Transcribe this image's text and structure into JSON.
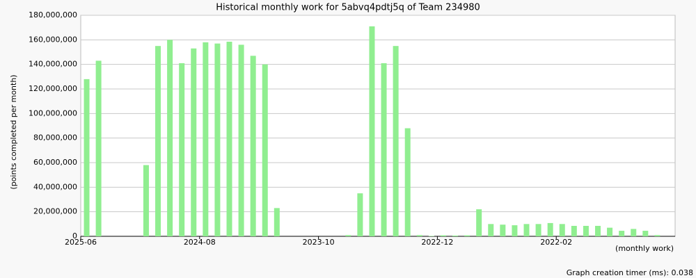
{
  "chart_data": {
    "type": "bar",
    "title": "Historical monthly work for 5abvq4pdtj5q of Team 234980",
    "y_label": "(points completed per month)",
    "x_label": "(monthly work)",
    "footer": "Graph creation timer (ms): 0.038",
    "color": "#90ee90",
    "grid": true,
    "categories": [
      "2025-06",
      null,
      null,
      null,
      null,
      null,
      null,
      null,
      null,
      null,
      "2024-08",
      null,
      null,
      null,
      null,
      null,
      null,
      null,
      null,
      null,
      "2023-10",
      null,
      null,
      null,
      null,
      null,
      null,
      null,
      null,
      null,
      "2022-12",
      null,
      null,
      null,
      null,
      null,
      null,
      null,
      null,
      null,
      "2022-02",
      null,
      null,
      null,
      null,
      null,
      null,
      null,
      null,
      null
    ],
    "values": [
      128000000,
      143000000,
      0,
      0,
      0,
      58000000,
      155000000,
      160000000,
      141000000,
      153000000,
      158000000,
      157000000,
      158500000,
      156000000,
      147000000,
      140000000,
      23000000,
      0,
      0,
      0,
      0,
      0,
      1000000,
      35000000,
      171000000,
      141000000,
      155000000,
      88000000,
      1000000,
      300000,
      800000,
      600000,
      800000,
      22000000,
      10000000,
      9500000,
      9000000,
      10000000,
      10000000,
      10800000,
      10000000,
      8500000,
      8500000,
      8500000,
      7000000,
      4500000,
      6000000,
      4500000,
      1000000,
      0
    ],
    "ylim": [
      0,
      180000000
    ],
    "yticks": [
      0,
      {
        "value": 20000000,
        "label": "20,000,000"
      },
      {
        "value": 40000000,
        "label": "40,000,000"
      },
      {
        "value": 60000000,
        "label": "60,000,000"
      },
      {
        "value": 80000000,
        "label": "80,000,000"
      },
      {
        "value": 100000000,
        "label": "100,000,000"
      },
      {
        "value": 120000000,
        "label": "120,000,000"
      },
      {
        "value": 140000000,
        "label": "140,000,000"
      },
      {
        "value": 160000000,
        "label": "160,000,000"
      },
      {
        "value": 180000000,
        "label": "180,000,000"
      }
    ]
  }
}
